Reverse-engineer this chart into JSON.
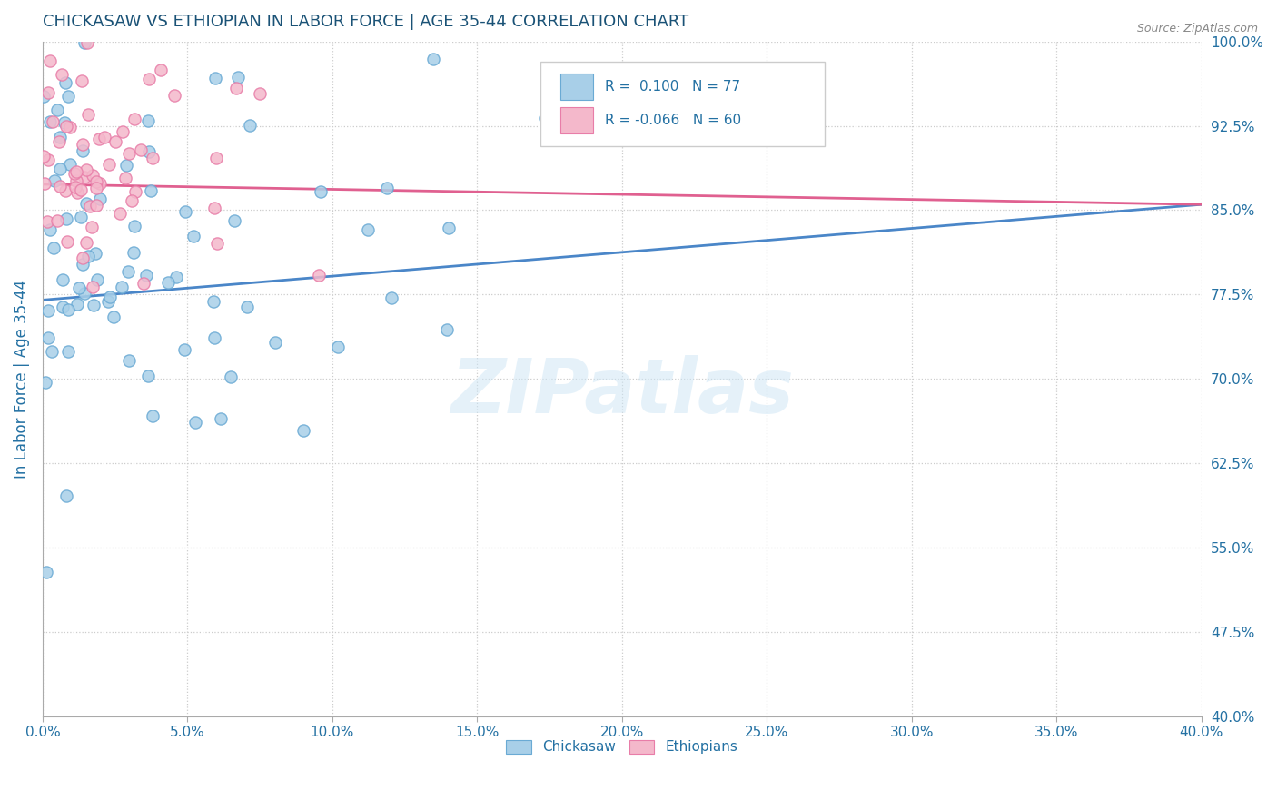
{
  "title": "CHICKASAW VS ETHIOPIAN IN LABOR FORCE | AGE 35-44 CORRELATION CHART",
  "source": "Source: ZipAtlas.com",
  "ylabel": "In Labor Force | Age 35-44",
  "xlim": [
    0.0,
    0.4
  ],
  "ylim": [
    0.4,
    1.0
  ],
  "xticks": [
    0.0,
    0.05,
    0.1,
    0.15,
    0.2,
    0.25,
    0.3,
    0.35,
    0.4
  ],
  "yticks": [
    0.4,
    0.475,
    0.55,
    0.625,
    0.7,
    0.775,
    0.85,
    0.925,
    1.0
  ],
  "ytick_labels": [
    "40.0%",
    "47.5%",
    "55.0%",
    "62.5%",
    "70.0%",
    "77.5%",
    "85.0%",
    "92.5%",
    "100.0%"
  ],
  "xtick_labels": [
    "0.0%",
    "5.0%",
    "10.0%",
    "15.0%",
    "20.0%",
    "25.0%",
    "30.0%",
    "35.0%",
    "40.0%"
  ],
  "blue_color": "#a8cfe8",
  "pink_color": "#f4b8cb",
  "blue_edge": "#6aaad4",
  "pink_edge": "#e87da8",
  "blue_line_color": "#4a86c8",
  "pink_line_color": "#e06090",
  "R_blue": 0.1,
  "N_blue": 77,
  "R_pink": -0.066,
  "N_pink": 60,
  "legend_labels": [
    "Chickasaw",
    "Ethiopians"
  ],
  "watermark": "ZIPatlas",
  "title_color": "#1a5276",
  "tick_color": "#2471a3",
  "background_color": "#ffffff",
  "grid_color": "#cccccc",
  "blue_line_y0": 0.77,
  "blue_line_y1": 0.855,
  "pink_line_y0": 0.873,
  "pink_line_y1": 0.855
}
